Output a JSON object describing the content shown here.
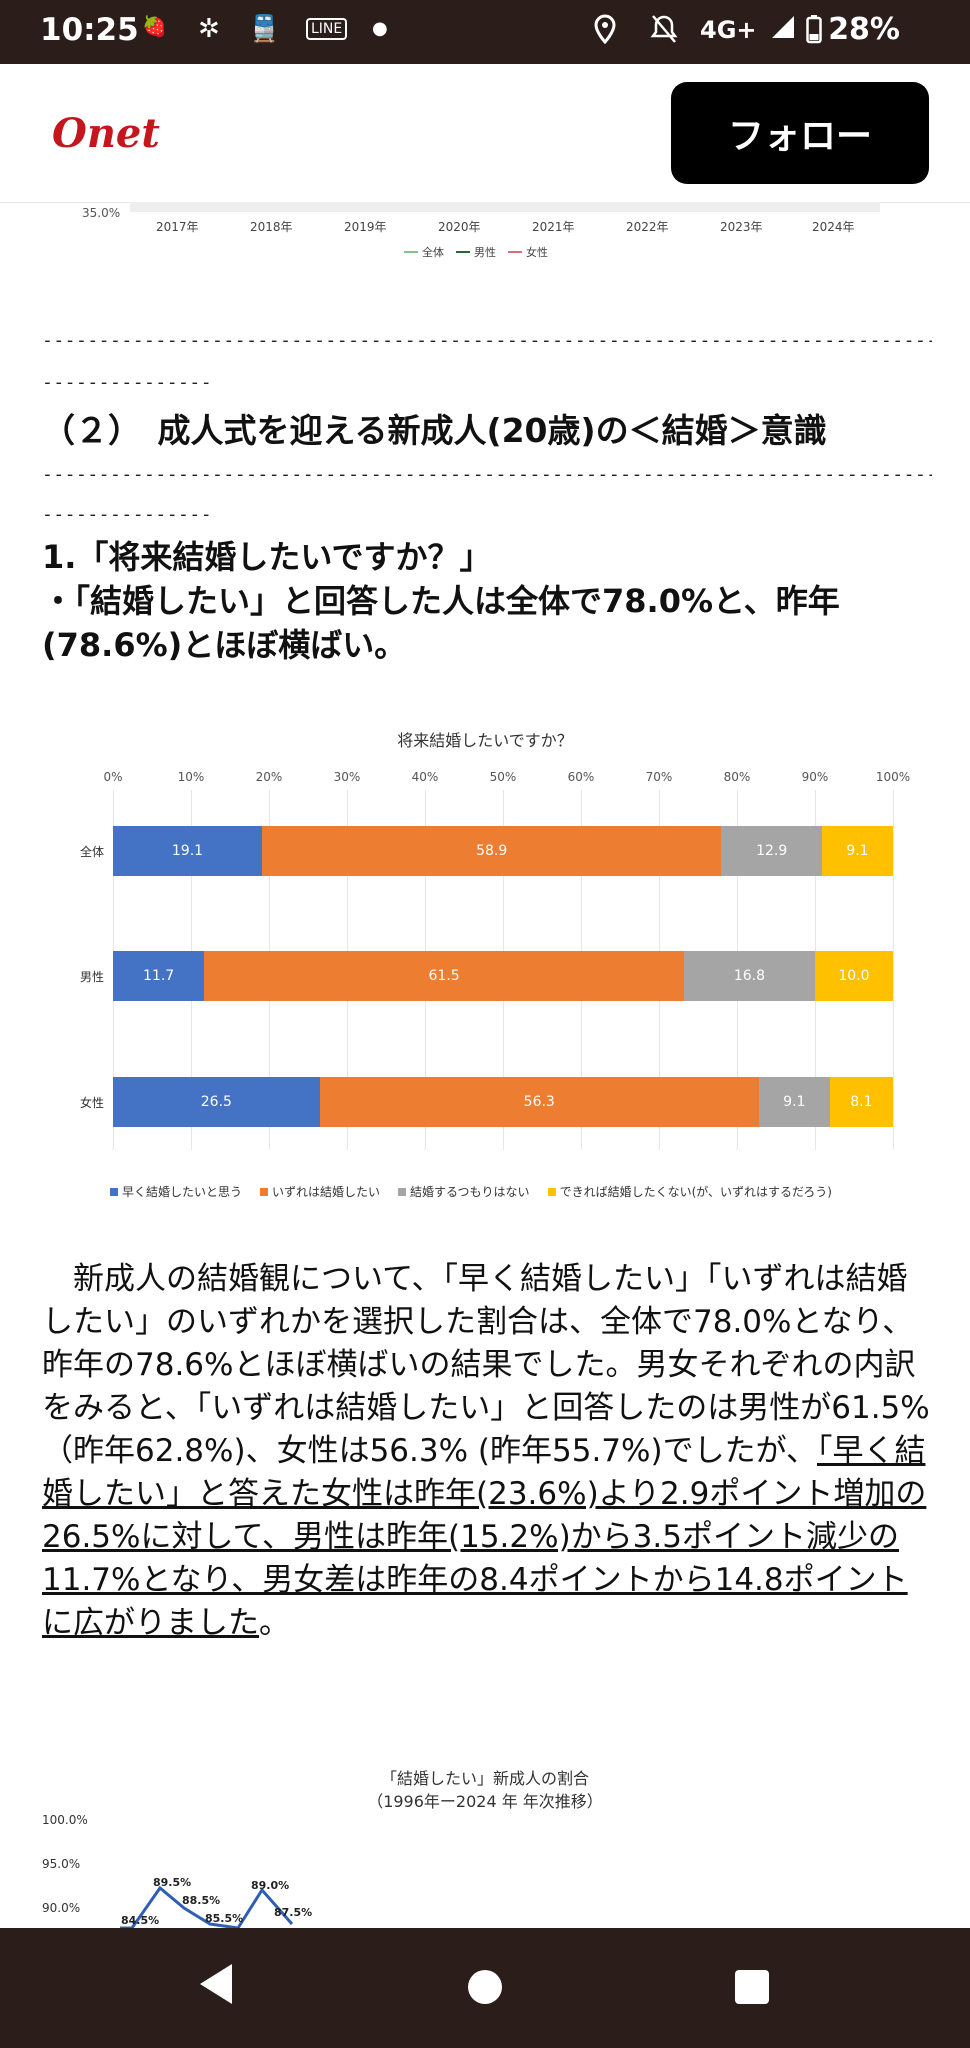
{
  "status": {
    "time": "10:25",
    "network": "4G+",
    "battery": "28%",
    "app_badge_1": "タベリグ",
    "app_badge_2": "LINE マンガ"
  },
  "header": {
    "logo": "Onet",
    "follow_label": "フォロー"
  },
  "top_chart": {
    "ytick": "35.0%",
    "years": [
      "2017年",
      "2018年",
      "2019年",
      "2020年",
      "2021年",
      "2022年",
      "2023年",
      "2024年"
    ],
    "legend": [
      {
        "name": "全体",
        "color": "#7fc38f"
      },
      {
        "name": "男性",
        "color": "#1f6b3a"
      },
      {
        "name": "女性",
        "color": "#e06c7a"
      }
    ]
  },
  "article": {
    "dashes_1a": "-----------------------------------------------------------------------------------",
    "dashes_1b": "---------------",
    "heading": "（２）　成人式を迎える新成人(20歳)の＜結婚＞意識",
    "dashes_2a": "-----------------------------------------------------------------------------------",
    "dashes_2b": "---------------",
    "q_line1": "1.「将来結婚したいですか？」",
    "q_line2": "・「結婚したい」と回答した人は全体で78.0%と、昨年(78.6%)とほぼ横ばい。",
    "para_a": "　新成人の結婚観について、「早く結婚したい」「いずれは結婚したい」のいずれかを選択した割合は、全体で78.0%となり、昨年の78.6%とほぼ横ばいの結果でした。男女それぞれの内訳をみると、「いずれは結婚したい」と回答したのは男性が61.5%（昨年62.8%)、女性は56.3% (昨年55.7%)でしたが、",
    "para_b": "「早く結婚したい」と答えた女性は昨年(23.6%)より2.9ポイント増加の26.5%に対して、男性は昨年(15.2%)から3.5ポイント減少の11.7%となり、男女差は昨年の8.4ポイントから14.8ポイントに広がりました",
    "para_c": "。"
  },
  "chart_data": [
    {
      "type": "bar",
      "orientation": "horizontal-stacked-100",
      "title": "将来結婚したいですか？",
      "xlim": [
        0,
        100
      ],
      "x_ticks": [
        "0%",
        "10%",
        "20%",
        "30%",
        "40%",
        "50%",
        "60%",
        "70%",
        "80%",
        "90%",
        "100%"
      ],
      "categories": [
        "全体",
        "男性",
        "女性"
      ],
      "series": [
        {
          "name": "早く結婚したいと思う",
          "color": "#4472c4",
          "values": [
            19.1,
            11.7,
            26.5
          ]
        },
        {
          "name": "いずれは結婚したい",
          "color": "#ed7d31",
          "values": [
            58.9,
            61.5,
            56.3
          ]
        },
        {
          "name": "結婚するつもりはない",
          "color": "#a5a5a5",
          "values": [
            12.9,
            16.8,
            9.1
          ]
        },
        {
          "name": "できれば結婚したくない(が、いずれはするだろう)",
          "color": "#ffc000",
          "values": [
            9.1,
            10.0,
            8.1
          ]
        }
      ],
      "value_labels": [
        [
          "19.1",
          "58.9",
          "12.9",
          "9.1"
        ],
        [
          "11.7",
          "61.5",
          "16.8",
          "10.0"
        ],
        [
          "26.5",
          "56.3",
          "9.1",
          "8.1"
        ]
      ],
      "legend": "bottom"
    },
    {
      "type": "line",
      "title": "「結婚したい」新成人の割合",
      "subtitle": "（1996年ー2024 年  年次推移）",
      "y_ticks": [
        "100.0%",
        "95.0%",
        "90.0%"
      ],
      "ylim": [
        90,
        100
      ],
      "visible_labels": [
        "84.5%",
        "89.5%",
        "88.5%",
        "85.5%",
        "89.0%",
        "87.5%"
      ],
      "values": [
        84.5,
        89.5,
        88.5,
        85.5,
        89.0,
        87.5
      ],
      "color": "#2f5fb3"
    }
  ],
  "nav": {
    "back": "back",
    "home": "home",
    "recent": "recent"
  }
}
